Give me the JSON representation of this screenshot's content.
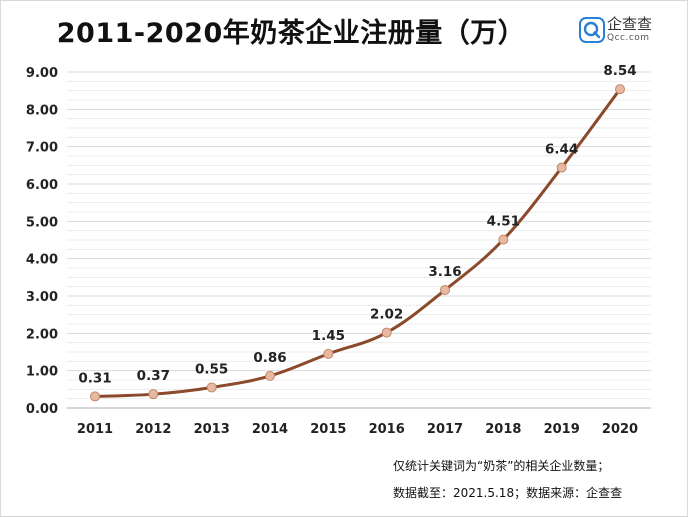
{
  "title": "2011-2020年奶茶企业注册量（万）",
  "brand": {
    "name": "企查查",
    "domain": "Qcc.com",
    "color": "#2b7fd4"
  },
  "footnote": {
    "line1": "仅统计关键词为“奶茶”的相关企业数量；",
    "line2": "数据截至：2021.5.18；数据来源：企查查"
  },
  "chart_data": {
    "type": "line",
    "title": "2011-2020年奶茶企业注册量（万）",
    "xlabel": "",
    "ylabel": "",
    "categories": [
      "2011",
      "2012",
      "2013",
      "2014",
      "2015",
      "2016",
      "2017",
      "2018",
      "2019",
      "2020"
    ],
    "values": [
      0.31,
      0.37,
      0.55,
      0.86,
      1.45,
      2.02,
      3.16,
      4.51,
      6.44,
      8.54
    ],
    "data_labels": [
      "0.31",
      "0.37",
      "0.55",
      "0.86",
      "1.45",
      "2.02",
      "3.16",
      "4.51",
      "6.44",
      "8.54"
    ],
    "y_ticks": [
      "0.00",
      "1.00",
      "2.00",
      "3.00",
      "4.00",
      "5.00",
      "6.00",
      "7.00",
      "8.00",
      "9.00"
    ],
    "ylim": [
      0,
      9
    ],
    "grid": true,
    "line_color": "#8b4a2b",
    "marker_color": "#e8b9a0"
  }
}
